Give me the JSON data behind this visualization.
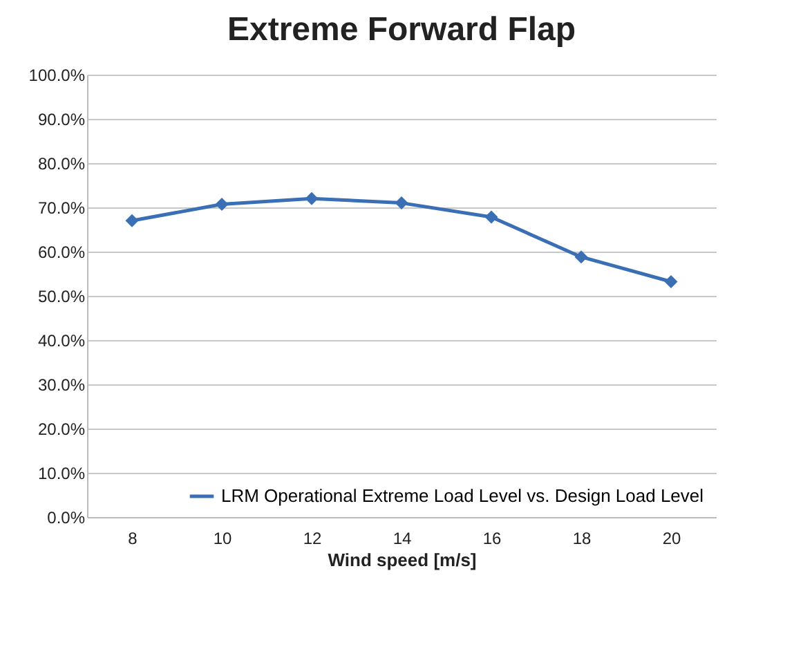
{
  "chart_data": {
    "type": "line",
    "title": "Extreme Forward Flap",
    "xlabel": "Wind speed [m/s]",
    "categories": [
      "8",
      "10",
      "12",
      "14",
      "16",
      "18",
      "20"
    ],
    "series": [
      {
        "name": "LRM Operational Extreme Load Level vs. Design Load Level",
        "color": "#3a6fb5",
        "values": [
          67,
          70.7,
          72,
          71,
          67.8,
          58.8,
          53.2
        ]
      }
    ],
    "ylim": [
      0,
      100
    ],
    "yticks": [
      {
        "value": 0,
        "label": "0.0%"
      },
      {
        "value": 10,
        "label": "10.0%"
      },
      {
        "value": 20,
        "label": "20.0%"
      },
      {
        "value": 30,
        "label": "30.0%"
      },
      {
        "value": 40,
        "label": "40.0%"
      },
      {
        "value": 50,
        "label": "50.0%"
      },
      {
        "value": 60,
        "label": "60.0%"
      },
      {
        "value": 70,
        "label": "70.0%"
      },
      {
        "value": 80,
        "label": "80.0%"
      },
      {
        "value": 90,
        "label": "90.0%"
      },
      {
        "value": 100,
        "label": "100.0%"
      }
    ],
    "grid": "y",
    "legend": "bottom right",
    "marker": "diamond",
    "line_style": "solid"
  }
}
